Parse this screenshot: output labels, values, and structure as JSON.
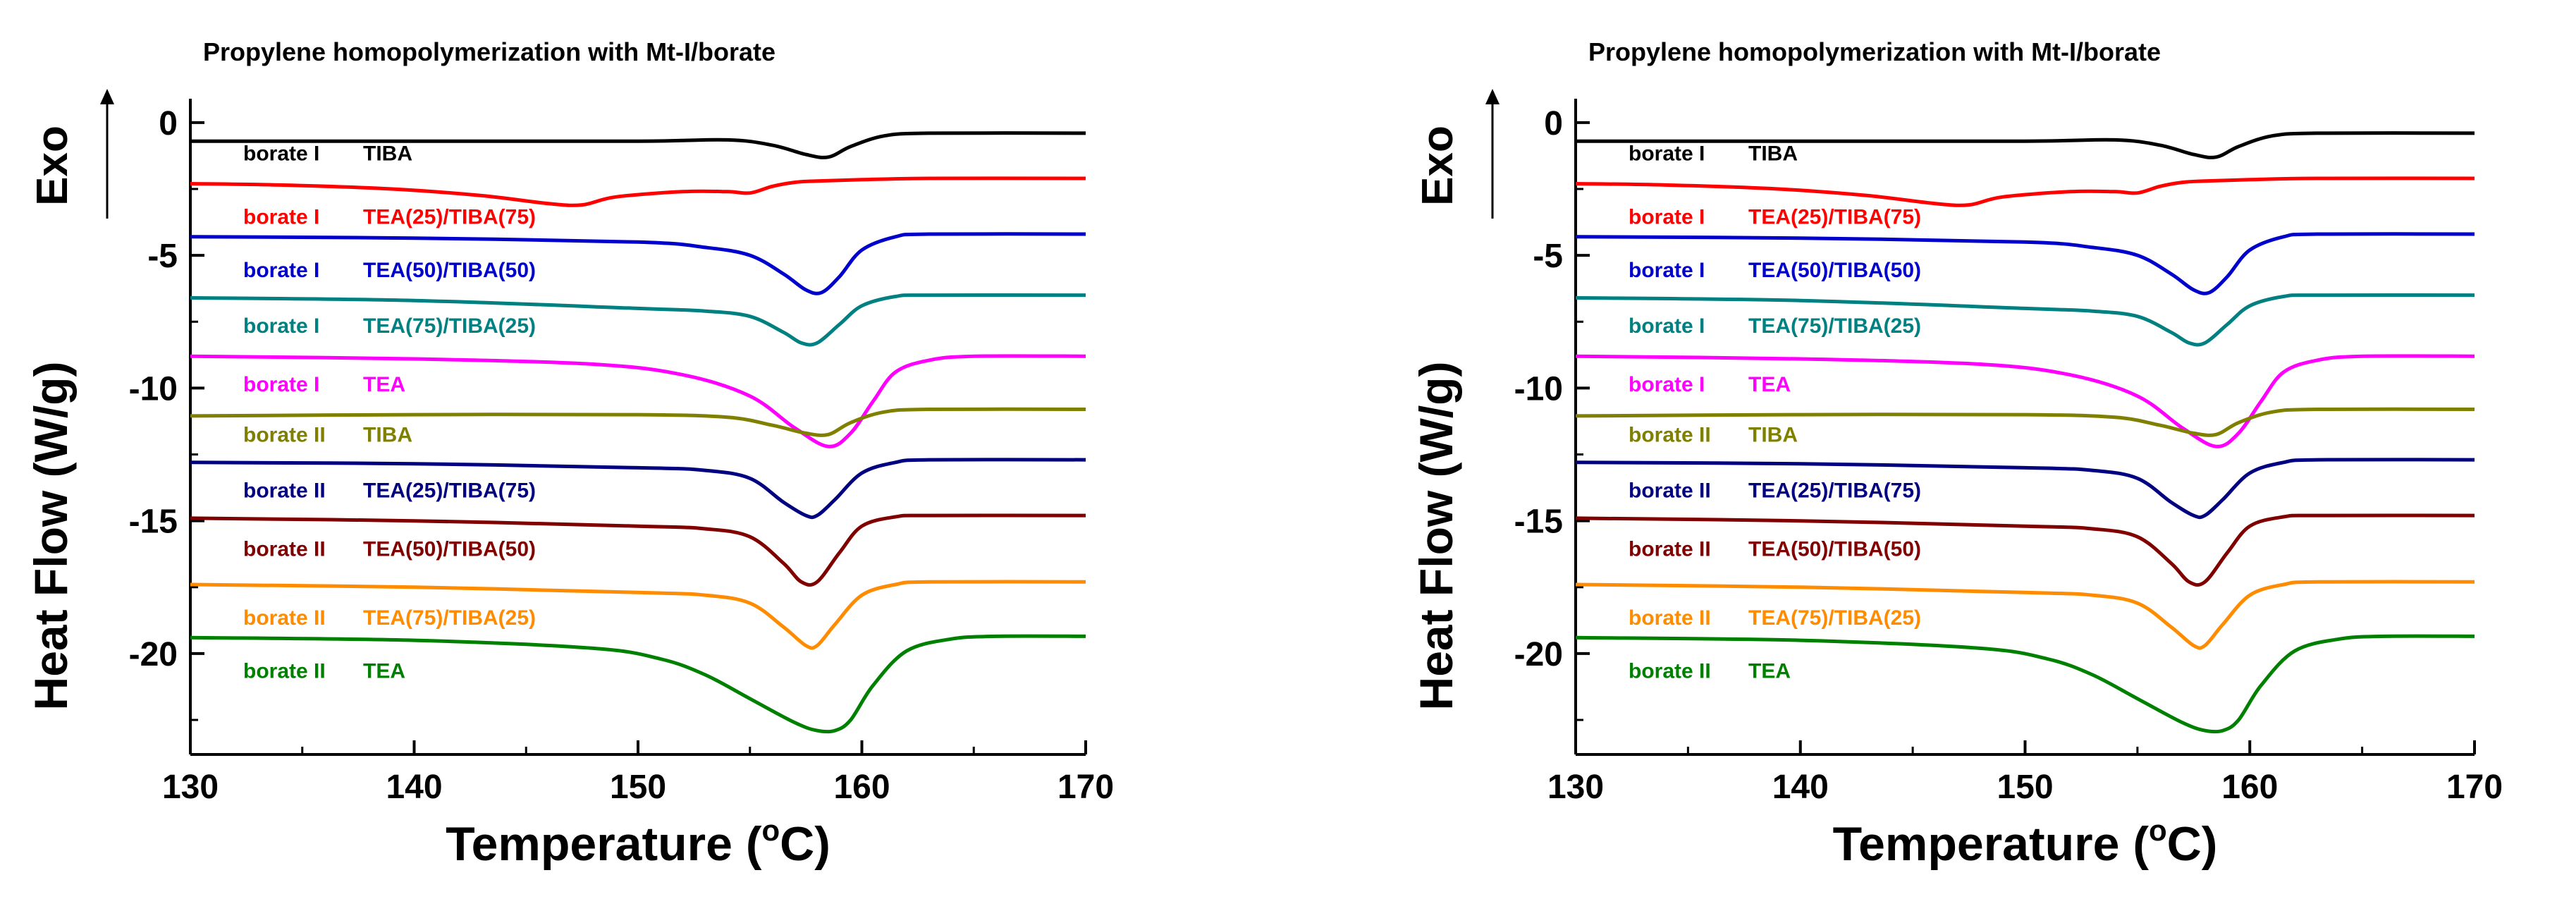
{
  "chart_data": [
    {
      "type": "line",
      "title": "Propylene homopolymerization with Mt-I/borate",
      "xlabel": "Temperature (°C)",
      "x_label_main": "Temperature (",
      "x_label_unit_sup": "o",
      "x_label_unit": "C)",
      "ylabel": "Heat Flow (W/g)",
      "exo_label": "Exo",
      "xlim": [
        130,
        170
      ],
      "ylim": [
        -23.8,
        0.9
      ],
      "xticks": [
        130,
        140,
        150,
        160,
        170
      ],
      "yticks": [
        0,
        -5,
        -10,
        -15,
        -20
      ],
      "grid": false,
      "series": [
        {
          "name": "borate I",
          "cocatalyst": "TIBA",
          "color": "#000000",
          "label_color": "#000000",
          "base": -0.7,
          "tail": -0.4,
          "label_y": -1.1,
          "x": [
            130,
            140,
            150,
            154,
            156,
            157.5,
            158.5,
            159.5,
            161,
            163,
            170
          ],
          "y": [
            -0.7,
            -0.7,
            -0.7,
            -0.65,
            -0.85,
            -1.2,
            -1.3,
            -0.9,
            -0.5,
            -0.4,
            -0.4
          ]
        },
        {
          "name": "borate I",
          "cocatalyst": "TEA(25)/TIBA(75)",
          "color": "#ff0000",
          "label_color": "#ff0000",
          "base": -2.3,
          "tail": -2.1,
          "label_y": -3.5,
          "x": [
            130,
            134,
            139,
            143,
            146,
            147.5,
            149,
            152,
            154,
            155,
            156,
            157,
            158,
            160,
            163,
            170
          ],
          "y": [
            -2.3,
            -2.35,
            -2.5,
            -2.75,
            -3.05,
            -3.1,
            -2.8,
            -2.6,
            -2.6,
            -2.65,
            -2.4,
            -2.25,
            -2.2,
            -2.15,
            -2.1,
            -2.1
          ]
        },
        {
          "name": "borate I",
          "cocatalyst": "TEA(50)/TIBA(50)",
          "color": "#0000cc",
          "label_color": "#0000cc",
          "base": -4.3,
          "tail": -4.2,
          "label_y": -5.5,
          "x": [
            130,
            140,
            150,
            153,
            155,
            156.5,
            157.5,
            158.2,
            159,
            160,
            161.5,
            163,
            170
          ],
          "y": [
            -4.3,
            -4.35,
            -4.5,
            -4.7,
            -5.0,
            -5.7,
            -6.3,
            -6.4,
            -5.8,
            -4.8,
            -4.3,
            -4.2,
            -4.2
          ]
        },
        {
          "name": "borate I",
          "cocatalyst": "TEA(75)/TIBA(25)",
          "color": "#008080",
          "label_color": "#008080",
          "base": -6.6,
          "tail": -6.5,
          "label_y": -7.6,
          "x": [
            130,
            140,
            150,
            153,
            155,
            156.5,
            157.3,
            158,
            159,
            160,
            161.5,
            163,
            170
          ],
          "y": [
            -6.6,
            -6.7,
            -7.0,
            -7.1,
            -7.3,
            -7.9,
            -8.3,
            -8.3,
            -7.6,
            -6.9,
            -6.55,
            -6.5,
            -6.5
          ]
        },
        {
          "name": "borate I",
          "cocatalyst": "TEA",
          "color": "#ff00ff",
          "label_color": "#ff00ff",
          "base": -8.8,
          "tail": -8.8,
          "label_y": -9.8,
          "x": [
            130,
            140,
            148,
            152,
            155,
            157,
            158.5,
            159.5,
            160.5,
            161.5,
            163,
            165,
            170
          ],
          "y": [
            -8.8,
            -8.9,
            -9.1,
            -9.5,
            -10.3,
            -11.5,
            -12.2,
            -11.7,
            -10.5,
            -9.4,
            -8.95,
            -8.8,
            -8.8
          ]
        },
        {
          "name": "borate II",
          "cocatalyst": "TIBA",
          "color": "#808000",
          "label_color": "#808000",
          "base": -11.0,
          "tail": -10.8,
          "label_y": -11.7,
          "x": [
            130,
            140,
            150,
            154,
            156,
            157.5,
            158.5,
            159.5,
            161,
            163,
            170
          ],
          "y": [
            -11.05,
            -11.0,
            -11.0,
            -11.1,
            -11.4,
            -11.7,
            -11.75,
            -11.3,
            -10.9,
            -10.8,
            -10.8
          ]
        },
        {
          "name": "borate II",
          "cocatalyst": "TEA(25)/TIBA(75)",
          "color": "#000080",
          "label_color": "#000080",
          "base": -12.8,
          "tail": -12.7,
          "label_y": -13.8,
          "x": [
            130,
            140,
            150,
            153,
            155,
            156.5,
            157.5,
            158,
            158.8,
            160,
            161.5,
            163,
            170
          ],
          "y": [
            -12.8,
            -12.85,
            -13.0,
            -13.1,
            -13.4,
            -14.3,
            -14.8,
            -14.8,
            -14.2,
            -13.2,
            -12.8,
            -12.7,
            -12.7
          ]
        },
        {
          "name": "borate II",
          "cocatalyst": "TEA(50)/TIBA(50)",
          "color": "#800000",
          "label_color": "#800000",
          "base": -14.9,
          "tail": -14.8,
          "label_y": -16.0,
          "x": [
            130,
            140,
            150,
            153,
            155,
            156.5,
            157.3,
            158,
            159,
            160,
            161.5,
            163,
            170
          ],
          "y": [
            -14.9,
            -15.0,
            -15.2,
            -15.3,
            -15.6,
            -16.6,
            -17.3,
            -17.3,
            -16.2,
            -15.2,
            -14.85,
            -14.8,
            -14.8
          ]
        },
        {
          "name": "borate II",
          "cocatalyst": "TEA(75)/TIBA(25)",
          "color": "#ff8c00",
          "label_color": "#ff8c00",
          "base": -17.4,
          "tail": -17.3,
          "label_y": -18.6,
          "x": [
            130,
            140,
            150,
            153,
            155,
            156.5,
            157.5,
            158,
            158.8,
            160,
            161.5,
            163,
            170
          ],
          "y": [
            -17.4,
            -17.5,
            -17.7,
            -17.8,
            -18.1,
            -19.0,
            -19.7,
            -19.7,
            -18.9,
            -17.8,
            -17.4,
            -17.3,
            -17.3
          ]
        },
        {
          "name": "borate II",
          "cocatalyst": "TEA",
          "color": "#008000",
          "label_color": "#008000",
          "base": -19.4,
          "tail": -19.3,
          "label_y": -20.6,
          "x": [
            130,
            140,
            148,
            151,
            153,
            155,
            157,
            158,
            158.8,
            159.5,
            160.5,
            162,
            164,
            166,
            170
          ],
          "y": [
            -19.4,
            -19.5,
            -19.8,
            -20.2,
            -20.8,
            -21.7,
            -22.6,
            -22.9,
            -22.9,
            -22.5,
            -21.2,
            -19.9,
            -19.45,
            -19.35,
            -19.35
          ]
        }
      ]
    },
    {
      "type": "line",
      "title": "Propylene homopolymerization with Mt-I/borate",
      "xlabel": "Temperature (°C)",
      "x_label_main": "Temperature (",
      "x_label_unit_sup": "o",
      "x_label_unit": "C)",
      "ylabel": "Heat Flow (W/g)",
      "exo_label": "Exo",
      "xlim": [
        130,
        170
      ],
      "ylim": [
        -23.8,
        0.9
      ],
      "xticks": [
        130,
        140,
        150,
        160,
        170
      ],
      "yticks": [
        0,
        -5,
        -10,
        -15,
        -20
      ],
      "grid": false,
      "series": [
        {
          "name": "borate I",
          "cocatalyst": "TIBA",
          "color": "#000000",
          "label_color": "#000000",
          "base": -0.7,
          "tail": -0.4,
          "label_y": -1.1,
          "x": [
            130,
            140,
            150,
            154,
            156,
            157.5,
            158.5,
            159.5,
            161,
            163,
            170
          ],
          "y": [
            -0.7,
            -0.7,
            -0.7,
            -0.65,
            -0.85,
            -1.2,
            -1.3,
            -0.9,
            -0.5,
            -0.4,
            -0.4
          ]
        },
        {
          "name": "borate I",
          "cocatalyst": "TEA(25)/TIBA(75)",
          "color": "#ff0000",
          "label_color": "#ff0000",
          "base": -2.3,
          "tail": -2.1,
          "label_y": -3.5,
          "x": [
            130,
            134,
            139,
            143,
            146,
            147.5,
            149,
            152,
            154,
            155,
            156,
            157,
            158,
            160,
            163,
            170
          ],
          "y": [
            -2.3,
            -2.35,
            -2.5,
            -2.75,
            -3.05,
            -3.1,
            -2.8,
            -2.6,
            -2.6,
            -2.65,
            -2.4,
            -2.25,
            -2.2,
            -2.15,
            -2.1,
            -2.1
          ]
        },
        {
          "name": "borate I",
          "cocatalyst": "TEA(50)/TIBA(50)",
          "color": "#0000cc",
          "label_color": "#0000cc",
          "base": -4.3,
          "tail": -4.2,
          "label_y": -5.5,
          "x": [
            130,
            140,
            150,
            153,
            155,
            156.5,
            157.5,
            158.2,
            159,
            160,
            161.5,
            163,
            170
          ],
          "y": [
            -4.3,
            -4.35,
            -4.5,
            -4.7,
            -5.0,
            -5.7,
            -6.3,
            -6.4,
            -5.8,
            -4.8,
            -4.3,
            -4.2,
            -4.2
          ]
        },
        {
          "name": "borate I",
          "cocatalyst": "TEA(75)/TIBA(25)",
          "color": "#008080",
          "label_color": "#008080",
          "base": -6.6,
          "tail": -6.5,
          "label_y": -7.6,
          "x": [
            130,
            140,
            150,
            153,
            155,
            156.5,
            157.3,
            158,
            159,
            160,
            161.5,
            163,
            170
          ],
          "y": [
            -6.6,
            -6.7,
            -7.0,
            -7.1,
            -7.3,
            -7.9,
            -8.3,
            -8.3,
            -7.6,
            -6.9,
            -6.55,
            -6.5,
            -6.5
          ]
        },
        {
          "name": "borate I",
          "cocatalyst": "TEA",
          "color": "#ff00ff",
          "label_color": "#ff00ff",
          "base": -8.8,
          "tail": -8.8,
          "label_y": -9.8,
          "x": [
            130,
            140,
            148,
            152,
            155,
            157,
            158.5,
            159.5,
            160.5,
            161.5,
            163,
            165,
            170
          ],
          "y": [
            -8.8,
            -8.9,
            -9.1,
            -9.5,
            -10.3,
            -11.5,
            -12.2,
            -11.7,
            -10.5,
            -9.4,
            -8.95,
            -8.8,
            -8.8
          ]
        },
        {
          "name": "borate II",
          "cocatalyst": "TIBA",
          "color": "#808000",
          "label_color": "#808000",
          "base": -11.0,
          "tail": -10.8,
          "label_y": -11.7,
          "x": [
            130,
            140,
            150,
            154,
            156,
            157.5,
            158.5,
            159.5,
            161,
            163,
            170
          ],
          "y": [
            -11.05,
            -11.0,
            -11.0,
            -11.1,
            -11.4,
            -11.7,
            -11.75,
            -11.3,
            -10.9,
            -10.8,
            -10.8
          ]
        },
        {
          "name": "borate II",
          "cocatalyst": "TEA(25)/TIBA(75)",
          "color": "#000080",
          "label_color": "#000080",
          "base": -12.8,
          "tail": -12.7,
          "label_y": -13.8,
          "x": [
            130,
            140,
            150,
            153,
            155,
            156.5,
            157.5,
            158,
            158.8,
            160,
            161.5,
            163,
            170
          ],
          "y": [
            -12.8,
            -12.85,
            -13.0,
            -13.1,
            -13.4,
            -14.3,
            -14.8,
            -14.8,
            -14.2,
            -13.2,
            -12.8,
            -12.7,
            -12.7
          ]
        },
        {
          "name": "borate II",
          "cocatalyst": "TEA(50)/TIBA(50)",
          "color": "#800000",
          "label_color": "#800000",
          "base": -14.9,
          "tail": -14.8,
          "label_y": -16.0,
          "x": [
            130,
            140,
            150,
            153,
            155,
            156.5,
            157.3,
            158,
            159,
            160,
            161.5,
            163,
            170
          ],
          "y": [
            -14.9,
            -15.0,
            -15.2,
            -15.3,
            -15.6,
            -16.6,
            -17.3,
            -17.3,
            -16.2,
            -15.2,
            -14.85,
            -14.8,
            -14.8
          ]
        },
        {
          "name": "borate II",
          "cocatalyst": "TEA(75)/TIBA(25)",
          "color": "#ff8c00",
          "label_color": "#ff8c00",
          "base": -17.4,
          "tail": -17.3,
          "label_y": -18.6,
          "x": [
            130,
            140,
            150,
            153,
            155,
            156.5,
            157.5,
            158,
            158.8,
            160,
            161.5,
            163,
            170
          ],
          "y": [
            -17.4,
            -17.5,
            -17.7,
            -17.8,
            -18.1,
            -19.0,
            -19.7,
            -19.7,
            -18.9,
            -17.8,
            -17.4,
            -17.3,
            -17.3
          ]
        },
        {
          "name": "borate II",
          "cocatalyst": "TEA",
          "color": "#008000",
          "label_color": "#008000",
          "base": -19.4,
          "tail": -19.3,
          "label_y": -20.6,
          "x": [
            130,
            140,
            148,
            151,
            153,
            155,
            157,
            158,
            158.8,
            159.5,
            160.5,
            162,
            164,
            166,
            170
          ],
          "y": [
            -19.4,
            -19.5,
            -19.8,
            -20.2,
            -20.8,
            -21.7,
            -22.6,
            -22.9,
            -22.9,
            -22.5,
            -21.2,
            -19.9,
            -19.45,
            -19.35,
            -19.35
          ]
        }
      ]
    }
  ]
}
